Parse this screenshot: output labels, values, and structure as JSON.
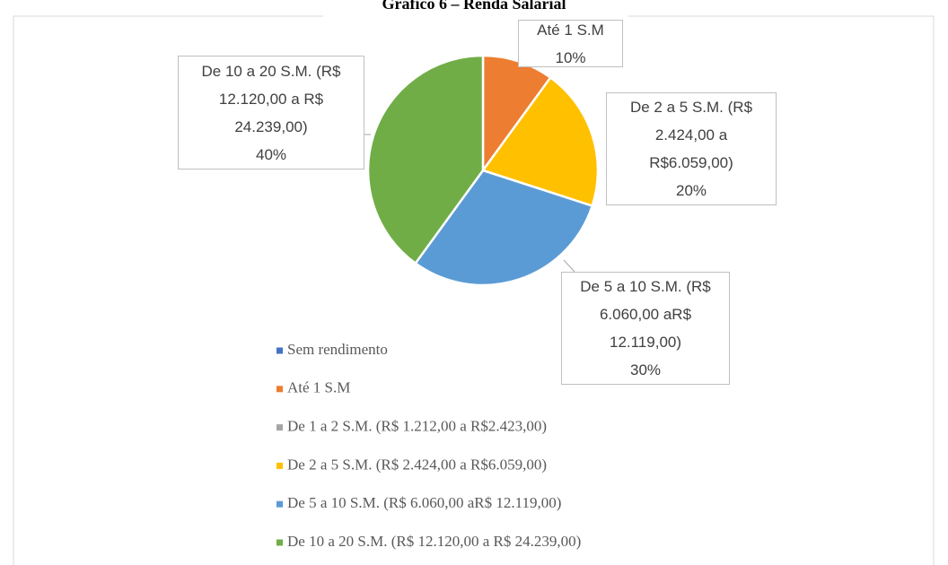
{
  "chart_data": {
    "type": "pie",
    "title": "Gráfico 6 – Renda Salarial",
    "categories": [
      "Sem rendimento",
      "Até 1 S.M",
      "De 1 a 2 S.M. (R$ 1.212,00 a R$2.423,00)",
      "De 2 a 5 S.M. (R$ 2.424,00 a R$6.059,00)",
      "De 5 a 10 S.M. (R$ 6.060,00 aR$ 12.119,00)",
      "De 10 a 20 S.M. (R$ 12.120,00 a R$ 24.239,00)"
    ],
    "values": [
      0,
      10,
      0,
      20,
      30,
      40
    ],
    "value_labels": [
      null,
      "10%",
      null,
      "20%",
      "30%",
      "40%"
    ],
    "colors": [
      "#4472c4",
      "#ed7d31",
      "#a5a5a5",
      "#ffc000",
      "#5b9bd5",
      "#70ad47"
    ],
    "legend": "bottom"
  }
}
